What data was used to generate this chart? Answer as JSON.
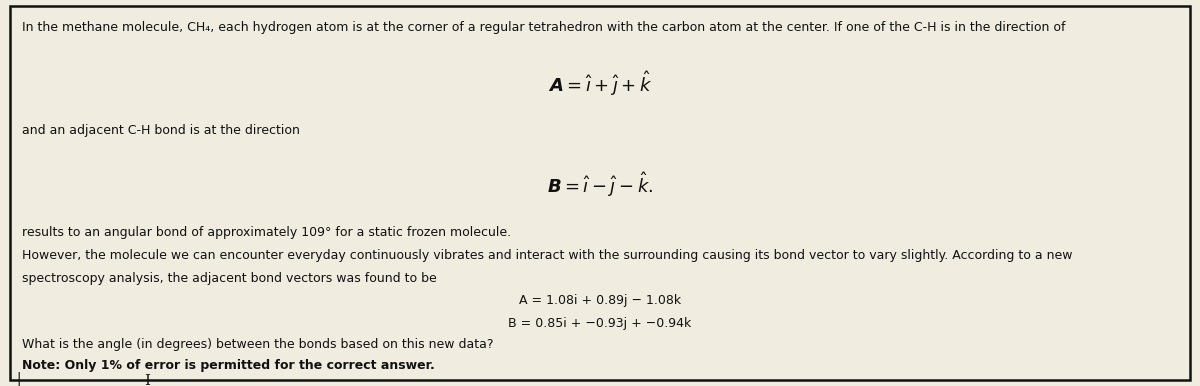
{
  "bg_color": "#f0ece0",
  "border_color": "#111111",
  "fig_width": 12.0,
  "fig_height": 3.86,
  "line1": "In the methane molecule, CH₄, each hydrogen atom is at the corner of a regular tetrahedron with the carbon atom at the center. If one of the C-H is in the direction of",
  "eq_A": "$\\boldsymbol{A} = \\hat{\\imath} + \\hat{\\jmath} + \\hat{k}$",
  "line2": "and an adjacent C-H bond is at the direction",
  "eq_B": "$\\boldsymbol{B} = \\hat{\\imath} - \\hat{\\jmath} - \\hat{k}.$",
  "line3": "results to an angular bond of approximately 109° for a static frozen molecule.",
  "line4a": "However, the molecule we can encounter everyday continuously vibrates and interact with the surrounding causing its bond vector to vary slightly. According to a new",
  "line4b": "spectroscopy analysis, the adjacent bond vectors was found to be",
  "eq_A2": "A = 1.08i + 0.89j − 1.08k",
  "eq_B2": "B = 0.85i + −0.93j + −0.94k",
  "line6": "What is the angle (in degrees) between the bonds based on this new data?",
  "line7": "Note: Only 1% of error is permitted for the correct answer.",
  "font_body": 9.0,
  "font_eq_large": 13.0,
  "font_eq_small": 9.0
}
